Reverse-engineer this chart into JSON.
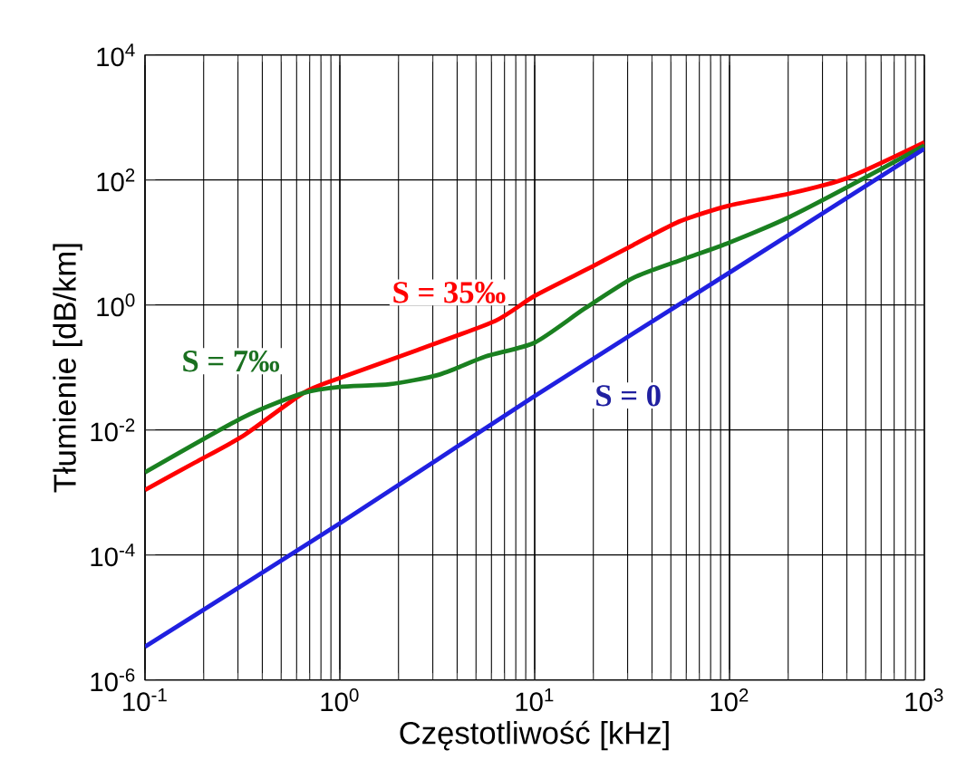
{
  "chart_data": {
    "type": "line",
    "xlabel": "Częstotliwość [kHz]",
    "ylabel": "Tłumienie [dB/km]",
    "log": "xy",
    "grid": true,
    "legend": false,
    "marker": "none",
    "line_style": "solid",
    "xlim": [
      0.1,
      1000
    ],
    "ylim": [
      1e-06,
      10000
    ],
    "xticks": [
      {
        "value": 0.1,
        "label": "10$^{-1}$"
      },
      {
        "value": 1,
        "label": "10$^{0}$"
      },
      {
        "value": 10,
        "label": "10$^{1}$"
      },
      {
        "value": 100,
        "label": "10$^{2}$"
      },
      {
        "value": 1000,
        "label": "10$^{3}$"
      }
    ],
    "yticks": [
      {
        "value": 1e-06,
        "label": "10$^{-6}$"
      },
      {
        "value": 0.0001,
        "label": "10$^{-4}$"
      },
      {
        "value": 0.01,
        "label": "10$^{-2}$"
      },
      {
        "value": 1,
        "label": "10$^{0}$"
      },
      {
        "value": 100,
        "label": "10$^{2}$"
      },
      {
        "value": 10000,
        "label": "10$^{4}$"
      }
    ],
    "series": [
      {
        "name": "S = 35‰",
        "color": "#ff0000",
        "x": [
          0.1,
          0.18,
          0.32,
          0.65,
          1,
          2.5,
          6.3,
          10,
          20,
          32,
          56,
          100,
          200,
          400,
          1000
        ],
        "values": [
          0.0011,
          0.003,
          0.0081,
          0.039,
          0.068,
          0.19,
          0.56,
          1.4,
          4.2,
          9.1,
          22,
          39,
          60,
          107,
          400
        ]
      },
      {
        "name": "S = 7‰",
        "color": "#1a8020",
        "x": [
          0.1,
          0.32,
          0.65,
          1,
          1.8,
          3.2,
          5.6,
          10,
          18,
          32,
          56,
          100,
          200,
          400,
          1000
        ],
        "values": [
          0.0021,
          0.016,
          0.039,
          0.049,
          0.054,
          0.076,
          0.15,
          0.25,
          0.87,
          2.7,
          5.2,
          10,
          25,
          76,
          355
        ]
      },
      {
        "name": "S = 0",
        "color": "#2020e0",
        "x": [
          0.1,
          1,
          10,
          100,
          1000
        ],
        "values": [
          3.4e-06,
          0.00032,
          0.035,
          3.3,
          316
        ]
      }
    ]
  }
}
